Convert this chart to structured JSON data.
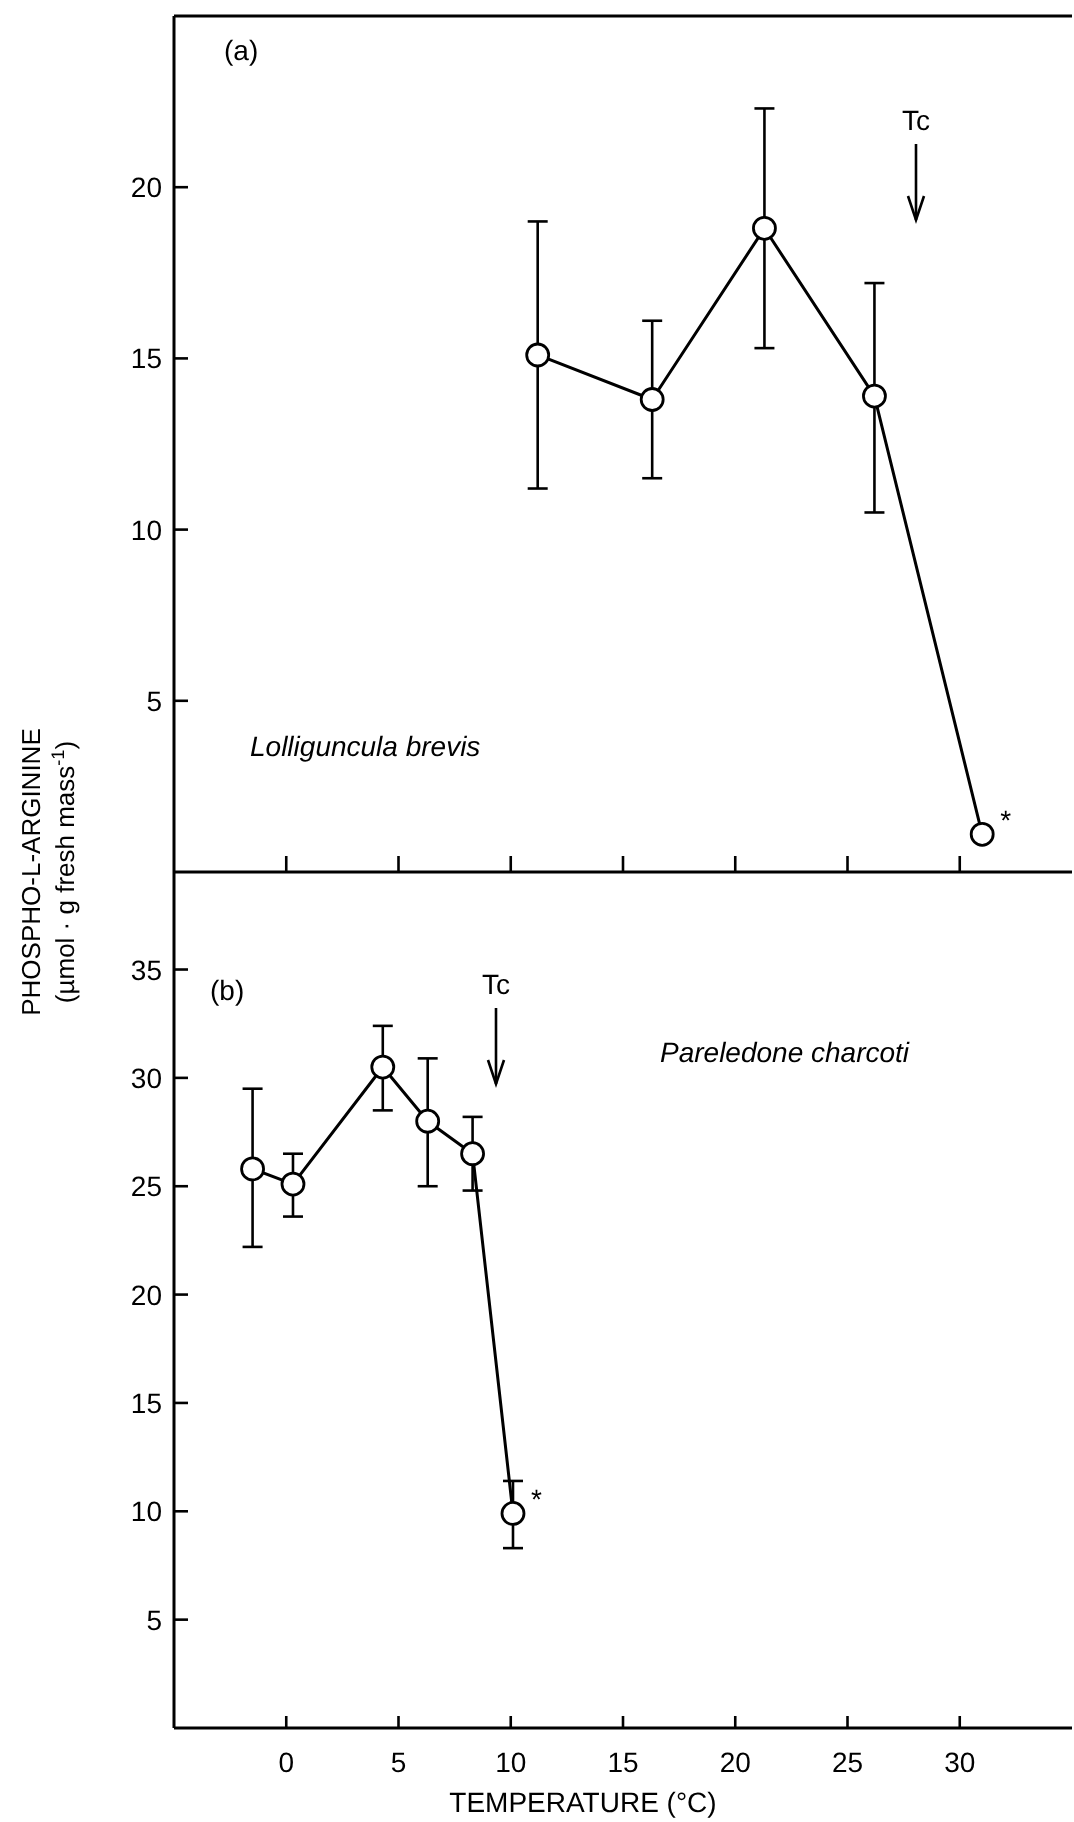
{
  "chart_data": [
    {
      "type": "line",
      "ylabel": "PHOSPHO-L-ARGININE\n(µmol · g fresh mass$^{-1}$)",
      "x": [
        11.2,
        16.3,
        21.3,
        26.2,
        31.0
      ],
      "xlim": [
        -5,
        35
      ],
      "xticks": [
        {
          "value": 0,
          "label": null
        },
        {
          "value": 5,
          "label": null
        },
        {
          "value": 10,
          "label": null
        },
        {
          "value": 15,
          "label": null
        },
        {
          "value": 20,
          "label": null
        },
        {
          "value": 25,
          "label": null
        },
        {
          "value": 30,
          "label": null
        }
      ],
      "ylim": [
        0,
        25
      ],
      "yticks": [
        5,
        10,
        15,
        20
      ],
      "tick_labels": "y",
      "marker": "circle",
      "line_style": "solid",
      "grid": false,
      "series": [
        {
          "color": "#000000",
          "values": [
            15.1,
            13.8,
            18.8,
            13.9,
            1.1
          ],
          "errors": [
            [
              11.2,
              19.0
            ],
            [
              11.5,
              16.1
            ],
            [
              15.3,
              22.3
            ],
            [
              10.5,
              17.2
            ],
            null
          ]
        }
      ],
      "annotations": [
        "(a)",
        "Lolliguncula brevis",
        "Tc",
        {
          "text": "*",
          "x": 31.0,
          "y": 1.1
        }
      ]
    },
    {
      "type": "line",
      "xlabel": "TEMPERATURE (°C)",
      "x": [
        -1.5,
        0.3,
        4.3,
        6.3,
        8.3,
        10.1
      ],
      "xlim": [
        -5,
        35
      ],
      "xticks": [
        0,
        5,
        10,
        15,
        20,
        25,
        30
      ],
      "ylim": [
        0,
        39.5
      ],
      "yticks": [
        5,
        10,
        15,
        20,
        25,
        30,
        35
      ],
      "marker": "circle",
      "line_style": "solid",
      "grid": false,
      "series": [
        {
          "color": "#000000",
          "values": [
            25.8,
            25.1,
            30.5,
            28.0,
            26.5,
            9.9
          ],
          "errors": [
            [
              22.2,
              29.5
            ],
            [
              23.6,
              26.5
            ],
            [
              28.5,
              32.4
            ],
            [
              25.0,
              30.9
            ],
            [
              24.8,
              28.2
            ],
            [
              8.3,
              11.4
            ]
          ]
        }
      ],
      "annotations": [
        "(b)",
        "Pareledone charcoti",
        "Tc",
        {
          "text": "*",
          "x": 10.1,
          "y": 9.9
        }
      ]
    }
  ]
}
